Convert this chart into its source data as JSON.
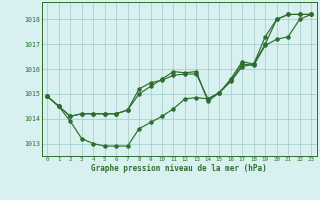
{
  "background_color": "#d8f0f0",
  "grid_color": "#a0c8c8",
  "line_color": "#2d6e2d",
  "xlabel": "Graphe pression niveau de la mer (hPa)",
  "xlim": [
    -0.5,
    23.5
  ],
  "ylim": [
    1012.5,
    1018.7
  ],
  "yticks": [
    1013,
    1014,
    1015,
    1016,
    1017,
    1018
  ],
  "xticks": [
    0,
    1,
    2,
    3,
    4,
    5,
    6,
    7,
    8,
    9,
    10,
    11,
    12,
    13,
    14,
    15,
    16,
    17,
    18,
    19,
    20,
    21,
    22,
    23
  ],
  "s1_x": [
    0,
    1,
    2,
    3,
    4,
    5,
    6,
    7,
    8,
    9,
    10,
    11,
    12,
    13,
    14,
    15,
    16,
    17,
    18,
    19,
    20,
    21,
    22,
    23
  ],
  "s1_y": [
    1014.9,
    1014.5,
    1013.9,
    1013.2,
    1013.0,
    1012.9,
    1012.9,
    1012.9,
    1013.6,
    1013.85,
    1014.1,
    1014.4,
    1014.8,
    1014.85,
    1014.8,
    1015.05,
    1015.5,
    1016.1,
    1016.2,
    1017.0,
    1018.0,
    1018.2,
    1018.2,
    1018.2
  ],
  "s2_x": [
    0,
    1,
    2,
    3,
    4,
    5,
    6,
    7,
    8,
    9,
    10,
    11,
    12,
    13,
    14,
    15,
    16,
    17,
    18,
    19,
    20,
    21,
    22,
    23
  ],
  "s2_y": [
    1014.9,
    1014.5,
    1014.1,
    1014.2,
    1014.2,
    1014.2,
    1014.2,
    1014.35,
    1015.2,
    1015.45,
    1015.55,
    1015.75,
    1015.8,
    1015.8,
    1014.8,
    1015.05,
    1015.6,
    1016.3,
    1016.2,
    1017.3,
    1018.0,
    1018.2,
    1018.2,
    1018.2
  ],
  "s3_x": [
    0,
    1,
    2,
    3,
    4,
    5,
    6,
    7,
    8,
    9,
    10,
    11,
    12,
    13,
    14,
    15,
    16,
    17,
    18,
    19,
    20,
    21,
    22,
    23
  ],
  "s3_y": [
    1014.9,
    1014.5,
    1014.1,
    1014.2,
    1014.2,
    1014.2,
    1014.2,
    1014.35,
    1015.0,
    1015.3,
    1015.6,
    1015.9,
    1015.85,
    1015.9,
    1014.7,
    1015.05,
    1015.55,
    1016.2,
    1016.15,
    1016.95,
    1017.2,
    1017.3,
    1018.0,
    1018.2
  ]
}
